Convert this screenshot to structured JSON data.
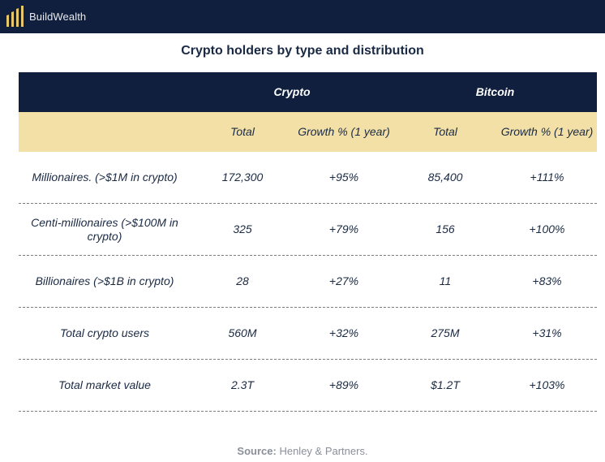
{
  "header": {
    "brand": "BuildWealth",
    "logo_icon": "buildwealth-bars-icon",
    "bar_color": "#0f1f3d",
    "accent_color": "#e8c76b"
  },
  "title": "Crypto holders by type and distribution",
  "table": {
    "groups": [
      "Crypto",
      "Bitcoin"
    ],
    "subheaders": [
      "Total",
      "Growth % (1 year)",
      "Total",
      "Growth % (1 year)"
    ],
    "rows": [
      {
        "label": "Millionaires. (>$1M in crypto)",
        "crypto_total": "172,300",
        "crypto_growth": "+95%",
        "btc_total": "85,400",
        "btc_growth": "+111%"
      },
      {
        "label": "Centi-millionaires (>$100M in crypto)",
        "crypto_total": "325",
        "crypto_growth": "+79%",
        "btc_total": "156",
        "btc_growth": "+100%"
      },
      {
        "label": "Billionaires (>$1B in crypto)",
        "crypto_total": "28",
        "crypto_growth": "+27%",
        "btc_total": "11",
        "btc_growth": "+83%"
      },
      {
        "label": "Total crypto users",
        "crypto_total": "560M",
        "crypto_growth": "+32%",
        "btc_total": "275M",
        "btc_growth": "+31%"
      },
      {
        "label": "Total market value",
        "crypto_total": "2.3T",
        "crypto_growth": "+89%",
        "btc_total": "$1.2T",
        "btc_growth": "+103%"
      }
    ],
    "header_color": "#0f1f3d",
    "subheader_color": "#f3e0a7"
  },
  "source": {
    "label": "Source:",
    "text": "Henley & Partners."
  }
}
